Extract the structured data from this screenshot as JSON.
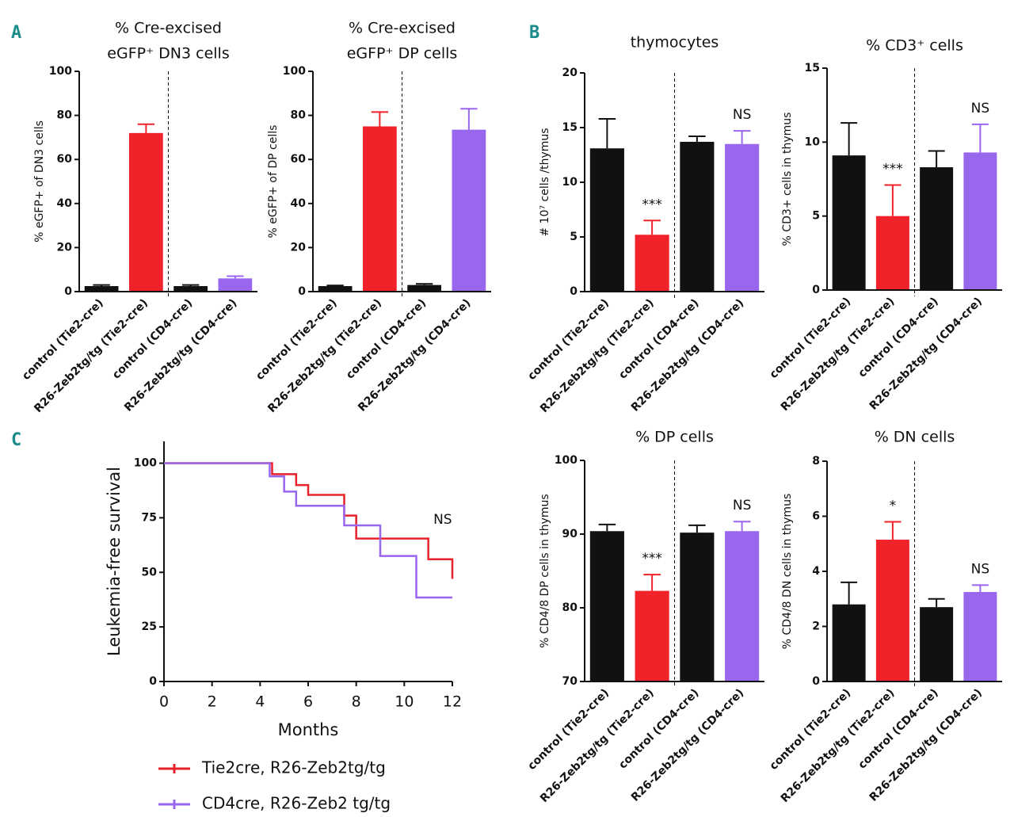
{
  "panel_labels": [
    "A",
    "B",
    "C"
  ],
  "chart_data": [
    {
      "type": "bar",
      "title": [
        "% Cre-excised",
        "eGFP⁺ DN3 cells"
      ],
      "y_label": "% eGFP+ of DN3 cells",
      "categories": [
        "control (Tie2-cre)",
        "R26-Zeb2tg/tg (Tie2-cre)",
        "control (CD4-cre)",
        "R26-Zeb2tg/tg (CD4-cre)"
      ],
      "values": [
        2.5,
        72,
        2.5,
        6
      ],
      "errors": [
        0.5,
        4,
        0.5,
        1
      ],
      "colors": [
        "#111111",
        "#f0222a",
        "#111111",
        "#9966ee"
      ],
      "ylim": [
        0,
        100
      ],
      "yticks": [
        0,
        20,
        40,
        60,
        80,
        100
      ]
    },
    {
      "type": "bar",
      "title": [
        "% Cre-excised",
        "eGFP⁺ DP cells"
      ],
      "y_label": "% eGFP+ of DP cells",
      "categories": [
        "control (Tie2-cre)",
        "R26-Zeb2tg/tg (Tie2-cre)",
        "control (CD4-cre)",
        "R26-Zeb2tg/tg (CD4-cre)"
      ],
      "values": [
        2.5,
        75,
        3,
        73.5
      ],
      "errors": [
        0.3,
        6.5,
        0.5,
        9.5
      ],
      "colors": [
        "#111111",
        "#f0222a",
        "#111111",
        "#9966ee"
      ],
      "ylim": [
        0,
        100
      ],
      "yticks": [
        0,
        20,
        40,
        60,
        80,
        100
      ]
    },
    {
      "type": "bar",
      "title": [
        "thymocytes"
      ],
      "y_label": "# 10⁷ cells /thymus",
      "categories": [
        "control (Tie2-cre)",
        "R26-Zeb2tg/tg (Tie2-cre)",
        "control (CD4-cre)",
        "R26-Zeb2tg/tg (CD4-cre)"
      ],
      "values": [
        13.1,
        5.2,
        13.7,
        13.5
      ],
      "errors": [
        2.7,
        1.3,
        0.5,
        1.2
      ],
      "colors": [
        "#111111",
        "#f0222a",
        "#111111",
        "#9966ee"
      ],
      "annotations": [
        null,
        "***",
        null,
        "NS"
      ],
      "ylim": [
        0,
        20
      ],
      "yticks": [
        0,
        5,
        10,
        15,
        20
      ]
    },
    {
      "type": "bar",
      "title": [
        "% CD3⁺ cells"
      ],
      "y_label": "% CD3+ cells in thymus",
      "categories": [
        "control (Tie2-cre)",
        "R26-Zeb2tg/tg (Tie2-cre)",
        "control (CD4-cre)",
        "R26-Zeb2tg/tg (CD4-cre)"
      ],
      "values": [
        9.1,
        5.0,
        8.3,
        9.3
      ],
      "errors": [
        2.2,
        2.1,
        1.1,
        1.9
      ],
      "colors": [
        "#111111",
        "#f0222a",
        "#111111",
        "#9966ee"
      ],
      "annotations": [
        null,
        "***",
        null,
        "NS"
      ],
      "ylim": [
        0,
        15
      ],
      "yticks": [
        0,
        5,
        10,
        15
      ]
    },
    {
      "type": "bar",
      "title": [
        "% DP cells"
      ],
      "y_label": "% CD4/8 DP cells in thymus",
      "categories": [
        "control (Tie2-cre)",
        "R26-Zeb2tg/tg (Tie2-cre)",
        "control (CD4-cre)",
        "R26-Zeb2tg/tg (CD4-cre)"
      ],
      "values": [
        90.4,
        82.3,
        90.2,
        90.4
      ],
      "errors": [
        0.9,
        2.2,
        1.0,
        1.3
      ],
      "colors": [
        "#111111",
        "#f0222a",
        "#111111",
        "#9966ee"
      ],
      "annotations": [
        null,
        "***",
        null,
        "NS"
      ],
      "ylim": [
        70,
        100
      ],
      "yticks": [
        70,
        80,
        90,
        100
      ]
    },
    {
      "type": "bar",
      "title": [
        "% DN cells"
      ],
      "y_label": "% CD4/8 DN cells in thymus",
      "categories": [
        "control (Tie2-cre)",
        "R26-Zeb2tg/tg (Tie2-cre)",
        "control (CD4-cre)",
        "R26-Zeb2tg/tg (CD4-cre)"
      ],
      "values": [
        2.8,
        5.15,
        2.7,
        3.25
      ],
      "errors": [
        0.8,
        0.65,
        0.3,
        0.25
      ],
      "colors": [
        "#111111",
        "#f0222a",
        "#111111",
        "#9966ee"
      ],
      "annotations": [
        null,
        "*",
        null,
        "NS"
      ],
      "ylim": [
        0,
        8
      ],
      "yticks": [
        0,
        2,
        4,
        6,
        8
      ]
    },
    {
      "type": "line",
      "x_label": "Months",
      "y_label": "Leukemia-free survival",
      "annotation": "NS",
      "xlim": [
        0,
        12
      ],
      "xticks": [
        0,
        2,
        4,
        6,
        8,
        10,
        12
      ],
      "ylim": [
        0,
        110
      ],
      "yticks": [
        0,
        25,
        50,
        75,
        100
      ],
      "series": [
        {
          "name": "Tie2cre, R26-Zeb2tg/tg",
          "color": "#e8222a",
          "x": [
            0,
            4.5,
            4.5,
            5.5,
            5.5,
            6,
            6,
            7.5,
            7.5,
            8,
            8,
            11,
            11,
            12,
            12
          ],
          "values": [
            100,
            100,
            95,
            95,
            90,
            90,
            85.5,
            85.5,
            76,
            76,
            65.5,
            65.5,
            56,
            56,
            47
          ]
        },
        {
          "name": "CD4cre, R26-Zeb2 tg/tg",
          "color": "#9966ee",
          "x": [
            0,
            4.4,
            4.4,
            5,
            5,
            5.5,
            5.5,
            7.5,
            7.5,
            9,
            9,
            10.5,
            10.5,
            12
          ],
          "values": [
            100,
            100,
            94,
            94,
            87,
            87,
            80.5,
            80.5,
            71.5,
            71.5,
            57.5,
            57.5,
            38.5,
            38.5
          ]
        }
      ]
    }
  ]
}
